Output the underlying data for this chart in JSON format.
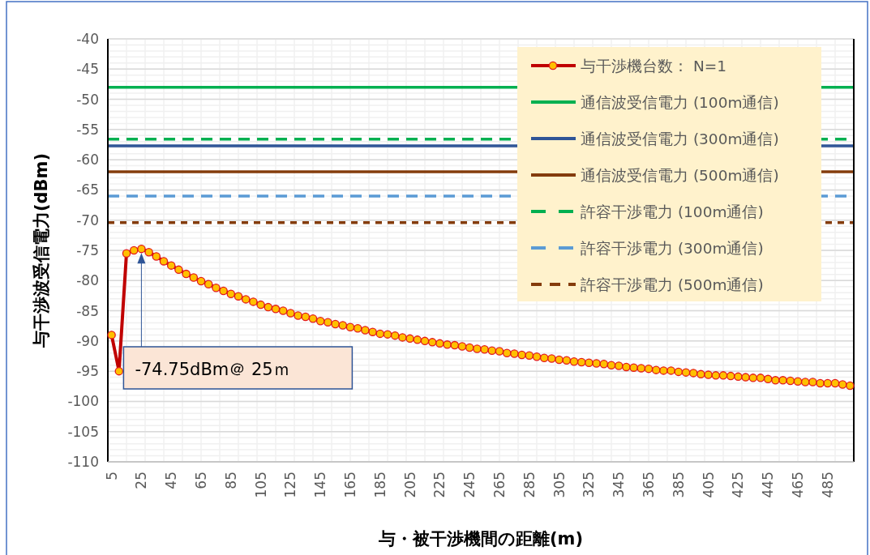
{
  "chart_data": {
    "type": "line",
    "xlabel": "与・被干渉機間の距離(m)",
    "ylabel": "与干渉波受信電力(dBm)",
    "categories": [
      "5",
      null,
      null,
      null,
      "25",
      null,
      null,
      null,
      "45",
      null,
      null,
      null,
      "65",
      null,
      null,
      null,
      "85",
      null,
      null,
      null,
      "105",
      null,
      null,
      null,
      "125",
      null,
      null,
      null,
      "145",
      null,
      null,
      null,
      "165",
      null,
      null,
      null,
      "185",
      null,
      null,
      null,
      "205",
      null,
      null,
      null,
      "225",
      null,
      null,
      null,
      "245",
      null,
      null,
      null,
      "265",
      null,
      null,
      null,
      "285",
      null,
      null,
      null,
      "305",
      null,
      null,
      null,
      "325",
      null,
      null,
      null,
      "345",
      null,
      null,
      null,
      "365",
      null,
      null,
      null,
      "385",
      null,
      null,
      null,
      "405",
      null,
      null,
      null,
      "425",
      null,
      null,
      null,
      "445",
      null,
      null,
      null,
      "465",
      null,
      null,
      null,
      "485",
      null,
      null,
      null
    ],
    "series": [
      {
        "name": "与干渉機台数： N=1",
        "color": "#c00000",
        "marker": "circle",
        "values": [
          -89.0,
          -95.0,
          -75.5,
          -75.0,
          -74.75,
          -75.3,
          -76.0,
          -76.8,
          -77.5,
          -78.2,
          -78.9,
          -79.5,
          -80.1,
          -80.6,
          -81.2,
          -81.7,
          -82.2,
          -82.6,
          -83.1,
          -83.5,
          -84.0,
          -84.4,
          -84.7,
          -85.0,
          -85.4,
          -85.8,
          -86.0,
          -86.3,
          -86.7,
          -86.9,
          -87.2,
          -87.4,
          -87.7,
          -87.9,
          -88.2,
          -88.5,
          -88.8,
          -88.9,
          -89.1,
          -89.4,
          -89.6,
          -89.8,
          -90.0,
          -90.2,
          -90.4,
          -90.6,
          -90.7,
          -90.9,
          -91.1,
          -91.3,
          -91.4,
          -91.6,
          -91.7,
          -92.0,
          -92.1,
          -92.3,
          -92.4,
          -92.6,
          -92.8,
          -92.9,
          -93.1,
          -93.2,
          -93.4,
          -93.5,
          -93.6,
          -93.7,
          -93.8,
          -94.0,
          -94.1,
          -94.3,
          -94.4,
          -94.5,
          -94.6,
          -94.8,
          -94.9,
          -94.9,
          -95.1,
          -95.2,
          -95.3,
          -95.5,
          -95.6,
          -95.7,
          -95.7,
          -95.8,
          -95.9,
          -96.0,
          -96.1,
          -96.1,
          -96.3,
          -96.5,
          -96.5,
          -96.6,
          -96.7,
          -96.8,
          -96.8,
          -97.0,
          -97.0,
          -97.0,
          -97.2,
          -97.4
        ]
      }
    ],
    "ref_lines": [
      {
        "axis": "y",
        "value": -48,
        "label": "通信波受信電力 (100m通信)",
        "color": "#00b050",
        "line_style": "solid"
      },
      {
        "axis": "y",
        "value": -57.7,
        "label": "通信波受信電力 (300m通信)",
        "color": "#2f5597",
        "line_style": "solid"
      },
      {
        "axis": "y",
        "value": -62,
        "label": "通信波受信電力 (500m通信)",
        "color": "#843c0c",
        "line_style": "solid"
      },
      {
        "axis": "y",
        "value": -56.6,
        "label": "許容干渉電力 (100m通信)",
        "color": "#00b050",
        "line_style": "dashed"
      },
      {
        "axis": "y",
        "value": -66,
        "label": "許容干渉電力 (300m通信)",
        "color": "#5b9bd5",
        "line_style": "dashed"
      },
      {
        "axis": "y",
        "value": -70.4,
        "label": "許容干渉電力 (500m通信)",
        "color": "#843c0c",
        "line_style": "dotted"
      }
    ],
    "annotations": [
      "-74.75dBm＠ 25ｍ"
    ],
    "ylim": [
      -110,
      -40
    ],
    "yticks": [
      -110,
      -105,
      -100,
      -95,
      -90,
      -85,
      -80,
      -75,
      -70,
      -65,
      -60,
      -55,
      -50,
      -45,
      -40
    ],
    "grid": true,
    "legend": "top right"
  }
}
